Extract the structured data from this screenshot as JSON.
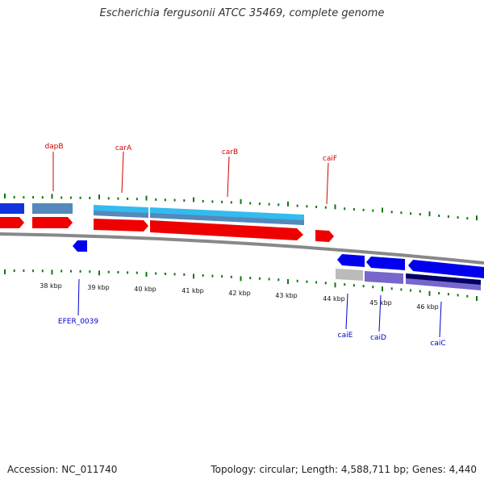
{
  "title": "Escherichia fergusonii ATCC 35469, complete genome",
  "footer": {
    "accession": "Accession: NC_011740",
    "summary": "Topology: circular; Length: 4,588,711 bp; Genes: 4,440"
  },
  "scale_labels": [
    "38 kbp",
    "39 kbp",
    "40 kbp",
    "41 kbp",
    "42 kbp",
    "43 kbp",
    "44 kbp",
    "45 kbp",
    "46 kbp"
  ],
  "gene_labels": {
    "forward": [
      "dapB",
      "carA",
      "carB",
      "caiF"
    ],
    "reverse": [
      "EFER_0039",
      "caiE",
      "caiD",
      "caiC"
    ]
  },
  "colors": {
    "forward_gene": "#ee0000",
    "reverse_gene": "#0000ee",
    "cds_light_blue": "#33bbee",
    "cds_steel": "#5588bb",
    "tick_green": "#117711",
    "backbone": "#888888",
    "purple": "#7766cc",
    "navy": "#000066"
  }
}
